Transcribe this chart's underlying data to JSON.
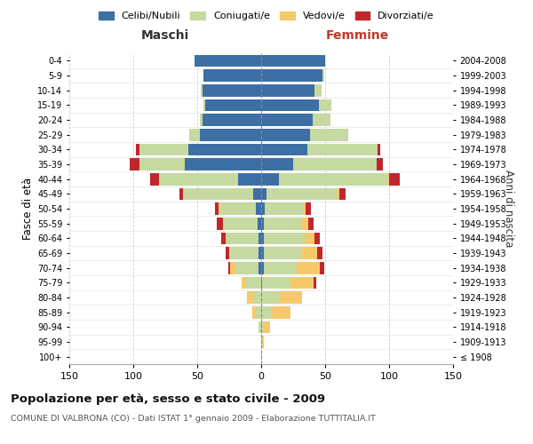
{
  "age_groups": [
    "100+",
    "95-99",
    "90-94",
    "85-89",
    "80-84",
    "75-79",
    "70-74",
    "65-69",
    "60-64",
    "55-59",
    "50-54",
    "45-49",
    "40-44",
    "35-39",
    "30-34",
    "25-29",
    "20-24",
    "15-19",
    "10-14",
    "5-9",
    "0-4"
  ],
  "birth_years": [
    "≤ 1908",
    "1909-1913",
    "1914-1918",
    "1919-1923",
    "1924-1928",
    "1929-1933",
    "1934-1938",
    "1939-1943",
    "1944-1948",
    "1949-1953",
    "1954-1958",
    "1959-1963",
    "1964-1968",
    "1969-1973",
    "1974-1978",
    "1979-1983",
    "1984-1988",
    "1989-1993",
    "1994-1998",
    "1999-2003",
    "2004-2008"
  ],
  "male": {
    "celibi": [
      0,
      0,
      0,
      0,
      0,
      0,
      2,
      2,
      2,
      3,
      4,
      6,
      18,
      60,
      57,
      48,
      46,
      44,
      46,
      45,
      52
    ],
    "coniugati": [
      0,
      0,
      2,
      4,
      6,
      12,
      18,
      22,
      25,
      26,
      28,
      55,
      62,
      35,
      38,
      8,
      2,
      1,
      1,
      0,
      0
    ],
    "vedovi": [
      0,
      0,
      0,
      3,
      5,
      3,
      4,
      1,
      1,
      1,
      1,
      0,
      0,
      0,
      0,
      0,
      0,
      0,
      0,
      0,
      0
    ],
    "divorziati": [
      0,
      0,
      0,
      0,
      0,
      0,
      2,
      3,
      3,
      5,
      3,
      3,
      7,
      8,
      3,
      0,
      0,
      0,
      0,
      0,
      0
    ]
  },
  "female": {
    "nubili": [
      0,
      0,
      0,
      0,
      0,
      1,
      2,
      2,
      2,
      2,
      3,
      4,
      14,
      25,
      36,
      38,
      40,
      45,
      42,
      48,
      50
    ],
    "coniugate": [
      0,
      1,
      2,
      8,
      14,
      22,
      26,
      30,
      32,
      30,
      30,
      55,
      85,
      65,
      55,
      30,
      14,
      10,
      5,
      1,
      0
    ],
    "vedove": [
      0,
      1,
      5,
      15,
      18,
      18,
      18,
      12,
      8,
      5,
      2,
      2,
      1,
      0,
      0,
      0,
      0,
      0,
      0,
      0,
      0
    ],
    "divorziate": [
      0,
      0,
      0,
      0,
      0,
      2,
      3,
      4,
      4,
      4,
      4,
      5,
      8,
      5,
      2,
      0,
      0,
      0,
      0,
      0,
      0
    ]
  },
  "colors": {
    "celibi": "#3d6fa5",
    "coniugati": "#c5d9a0",
    "vedovi": "#f5c96a",
    "divorziati": "#c0272d"
  },
  "title": "Popolazione per età, sesso e stato civile - 2009",
  "subtitle": "COMUNE DI VALBRONA (CO) - Dati ISTAT 1° gennaio 2009 - Elaborazione TUTTITALIA.IT",
  "xlim": 150,
  "xlabel_maschi": "Maschi",
  "xlabel_femmine": "Femmine",
  "ylabel_left": "Fasce di età",
  "ylabel_right": "Anni di nascita",
  "legend_labels": [
    "Celibi/Nubili",
    "Coniugati/e",
    "Vedovi/e",
    "Divorziati/e"
  ]
}
